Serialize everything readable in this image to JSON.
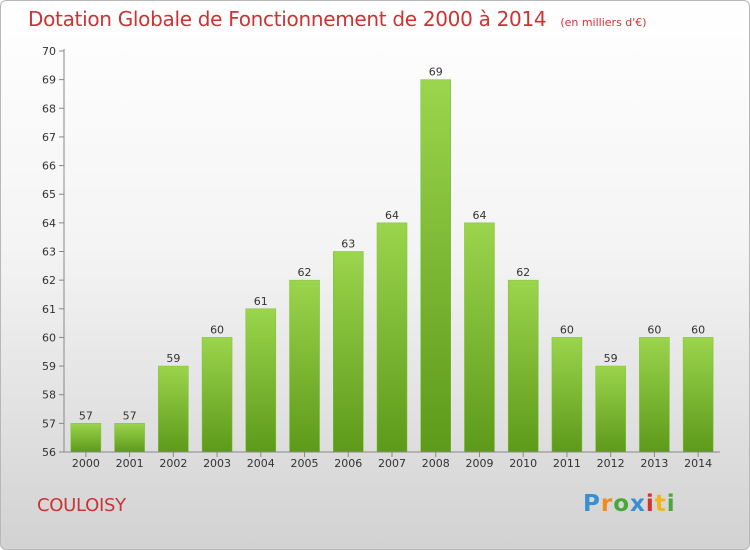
{
  "title": "Dotation Globale de Fonctionnement de 2000 à 2014",
  "unit_label": "(en milliers d'€)",
  "commune": "COULOISY",
  "logo": {
    "letters": [
      "P",
      "r",
      "o",
      "x",
      "i",
      "t",
      "i"
    ]
  },
  "colors": {
    "title": "#cc3333",
    "bar_light": "#9bd54d",
    "bar_dark": "#5d9a1a",
    "axis": "#888888",
    "grid": "#dddddd",
    "logo": [
      "#3a8fd0",
      "#f28a1f",
      "#4aa83a",
      "#3a8fd0",
      "#d8322c",
      "#f2b51c",
      "#4aa83a"
    ]
  },
  "chart_data": {
    "type": "bar",
    "title": "Dotation Globale de Fonctionnement de 2000 à 2014",
    "subtitle": "(en milliers d'€)",
    "xlabel": "",
    "ylabel": "",
    "categories": [
      "2000",
      "2001",
      "2002",
      "2003",
      "2004",
      "2005",
      "2006",
      "2007",
      "2008",
      "2009",
      "2010",
      "2011",
      "2012",
      "2013",
      "2014"
    ],
    "values": [
      57,
      57,
      59,
      60,
      61,
      62,
      63,
      64,
      69,
      64,
      62,
      60,
      59,
      60,
      60
    ],
    "data_labels": [
      "57",
      "57",
      "59",
      "60",
      "61",
      "62",
      "63",
      "64",
      "69",
      "64",
      "62",
      "60",
      "59",
      "60",
      "60"
    ],
    "ylim": [
      56,
      70
    ],
    "yticks": [
      56,
      57,
      58,
      59,
      60,
      61,
      62,
      63,
      64,
      65,
      66,
      67,
      68,
      69,
      70
    ],
    "grid": false,
    "legend": "none"
  }
}
